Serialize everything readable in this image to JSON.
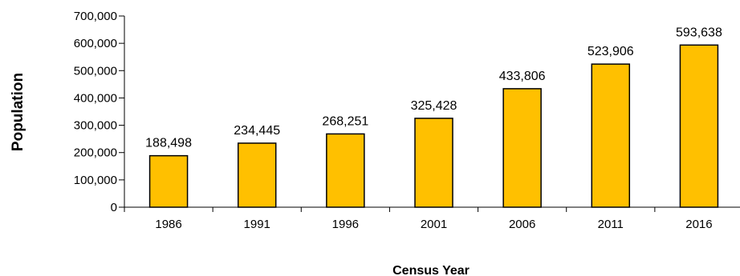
{
  "chart_data": {
    "type": "bar",
    "title": "",
    "xlabel": "Census Year",
    "ylabel": "Population",
    "categories": [
      "1986",
      "1991",
      "1996",
      "2001",
      "2006",
      "2011",
      "2016"
    ],
    "values": [
      188498,
      234445,
      268251,
      325428,
      433806,
      523906,
      593638
    ],
    "data_labels": [
      "188,498",
      "234,445",
      "268,251",
      "325,428",
      "433,806",
      "523,906",
      "593,638"
    ],
    "y_ticks": [
      0,
      100000,
      200000,
      300000,
      400000,
      500000,
      600000,
      700000
    ],
    "y_tick_labels": [
      "0",
      "100,000",
      "200,000",
      "300,000",
      "400,000",
      "500,000",
      "600,000",
      "700,000"
    ],
    "ylim": [
      0,
      700000
    ],
    "grid": false,
    "legend": "none",
    "colors": {
      "bar_fill": "#FFC000",
      "bar_stroke": "#000000",
      "axis": "#000000"
    }
  }
}
